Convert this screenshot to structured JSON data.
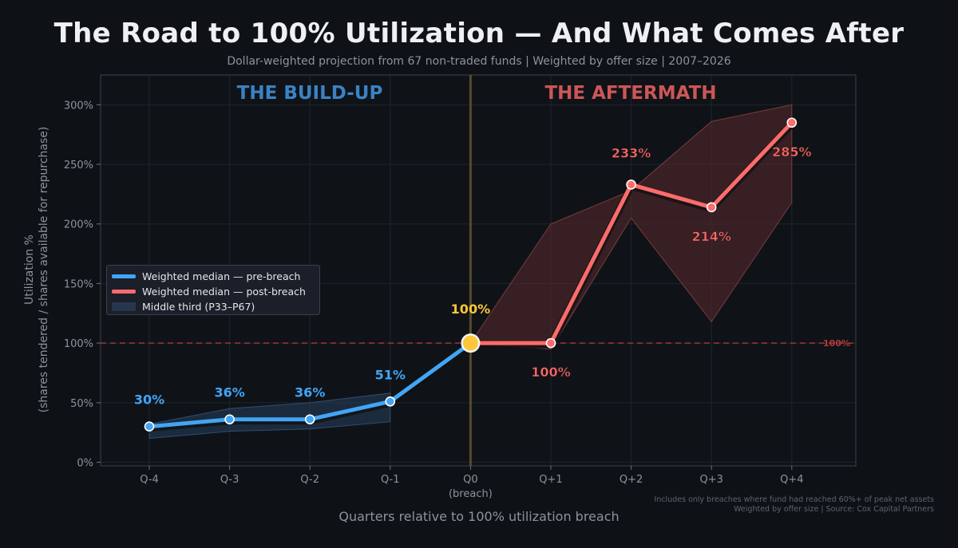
{
  "title": "The Road to 100% Utilization — And What Comes After",
  "subtitle": "Dollar-weighted projection from 67 non-traded funds  |  Weighted by offer size  |  2007–2026",
  "colors": {
    "background": "#0e1217",
    "pre_breach": "#42a5f5",
    "post_breach": "#ff6b6b",
    "breach_point": "#fcc73a",
    "buildup_heading": "#3b82c4",
    "aftermath_heading": "#cd5656"
  },
  "chart_data": {
    "type": "line",
    "xlabel": "Quarters relative to 100% utilization breach",
    "ylabel_line1": "Utilization %",
    "ylabel_line2": "(shares tendered / shares available for repurchase)",
    "categories": [
      "Q-4",
      "Q-3",
      "Q-2",
      "Q-1",
      "Q0",
      "Q+1",
      "Q+2",
      "Q+3",
      "Q+4"
    ],
    "breach_sublabel": "(breach)",
    "ylim": [
      -3,
      325
    ],
    "yticks": [
      0,
      50,
      100,
      150,
      200,
      250,
      300
    ],
    "ytick_labels": [
      "0%",
      "50%",
      "100%",
      "150%",
      "200%",
      "250%",
      "300%"
    ],
    "grid": true,
    "reference_line": {
      "value": 100,
      "label": "100%"
    },
    "breach_point": {
      "x": 4,
      "value": 100,
      "label": "100%"
    },
    "region_labels": {
      "left": "THE BUILD-UP",
      "right": "THE AFTERMATH"
    },
    "series": [
      {
        "name": "Weighted median — pre-breach",
        "x": [
          0,
          1,
          2,
          3,
          4
        ],
        "values": [
          30,
          36,
          36,
          51,
          100
        ],
        "labels": [
          "30%",
          "36%",
          "36%",
          "51%"
        ],
        "band_low": [
          20,
          26,
          28,
          34
        ],
        "band_high": [
          32,
          45,
          50,
          58
        ]
      },
      {
        "name": "Weighted median — post-breach",
        "x": [
          4,
          5,
          6,
          7,
          8
        ],
        "values": [
          100,
          100,
          233,
          214,
          285
        ],
        "labels": [
          "100%",
          "233%",
          "214%",
          "285%"
        ],
        "band_low": [
          100,
          95,
          205,
          118,
          218
        ],
        "band_high": [
          100,
          200,
          228,
          286,
          300
        ]
      }
    ],
    "legend": [
      {
        "label": "Weighted median — pre-breach"
      },
      {
        "label": "Weighted median — post-breach"
      },
      {
        "label": "Middle third (P33–P67)"
      }
    ],
    "legend_position": "center-left"
  },
  "footnote": {
    "line1": "Includes only breaches where fund had reached 60%+ of peak net assets",
    "line2": "Weighted by offer size  |  Source: Cox Capital Partners"
  }
}
